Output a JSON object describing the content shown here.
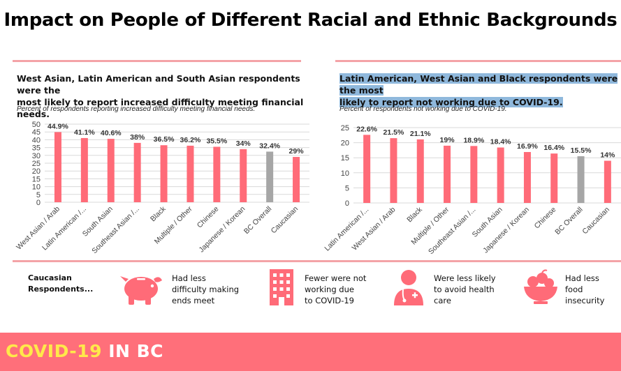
{
  "title": "Impact on People of Different Racial and Ethnic Backgrounds",
  "left_panel": {
    "heading_line1": "West Asian, Latin American and South Asian respondents were the",
    "heading_line2": "most likely to report increased difficulty meeting financial needs.",
    "subtitle": "Percent of respondents reporting increased difficulty meeting financial needs."
  },
  "right_panel": {
    "heading_line1": "Latin American, West Asian and Black respondents were the most",
    "heading_line2": "likely to report not working due to COVID-19.",
    "subtitle": "Percent of respondents not working due to COVID-19."
  },
  "chart_data": [
    {
      "type": "bar",
      "title": "Percent of respondents reporting increased difficulty meeting financial needs.",
      "categories": [
        "West Asian / Arab",
        "Latin American /...",
        "South Asian",
        "Southeast Asian /...",
        "Black",
        "Multiple / Other",
        "Chinese",
        "Japanese / Korean",
        "BC Overall",
        "Caucasian"
      ],
      "values": [
        44.9,
        41.1,
        40.6,
        38,
        36.5,
        36.2,
        35.5,
        34,
        32.4,
        29
      ],
      "value_labels": [
        "44.9%",
        "41.1%",
        "40.6%",
        "38%",
        "36.5%",
        "36.2%",
        "35.5%",
        "34%",
        "32.4%",
        "29%"
      ],
      "yticks": [
        "0",
        "5",
        "10",
        "15",
        "20",
        "25",
        "30",
        "35",
        "40",
        "45",
        "50"
      ],
      "ylim": [
        0,
        50
      ],
      "highlight_category": "BC Overall",
      "grid": true
    },
    {
      "type": "bar",
      "title": "Percent of respondents not working due to COVID-19.",
      "categories": [
        "Latin American /...",
        "West Asian / Arab",
        "Black",
        "Multiple / Other",
        "Southeast Asian /...",
        "South Asian",
        "Japanese / Korean",
        "Chinese",
        "BC Overall",
        "Caucasian"
      ],
      "values": [
        22.6,
        21.5,
        21.1,
        19,
        18.9,
        18.4,
        16.9,
        16.4,
        15.5,
        14
      ],
      "value_labels": [
        "22.6%",
        "21.5%",
        "21.1%",
        "19%",
        "18.9%",
        "18.4%",
        "16.9%",
        "16.4%",
        "15.5%",
        "14%"
      ],
      "yticks": [
        "0",
        "5",
        "10",
        "15",
        "20",
        "25"
      ],
      "ylim": [
        0,
        25
      ],
      "highlight_category": "BC Overall",
      "grid": true
    }
  ],
  "colors": {
    "bar": "#ff6b78",
    "highlight": "#a6a6a6",
    "accent": "#ff6f7a",
    "rule": "#f4a3a7",
    "heading_highlight": "#8fb8dc",
    "footer_yellow": "#ffe94a"
  },
  "legend": {
    "label_line1": "Caucasian",
    "label_line2": "Respondents...",
    "items": [
      {
        "icon": "piggy-bank-icon",
        "line1": "Had less",
        "line2": "difficulty making",
        "line3": "ends meet"
      },
      {
        "icon": "office-building-icon",
        "line1": "Fewer were not",
        "line2": "working due",
        "line3": "to COVID-19"
      },
      {
        "icon": "doctor-icon",
        "line1": "Were less likely",
        "line2": "to avoid health",
        "line3": "care"
      },
      {
        "icon": "fruit-bowl-icon",
        "line1": "Had less",
        "line2": "food",
        "line3": "insecurity"
      }
    ]
  },
  "footer": {
    "part1": "COVID-19",
    "part2": "IN BC"
  }
}
